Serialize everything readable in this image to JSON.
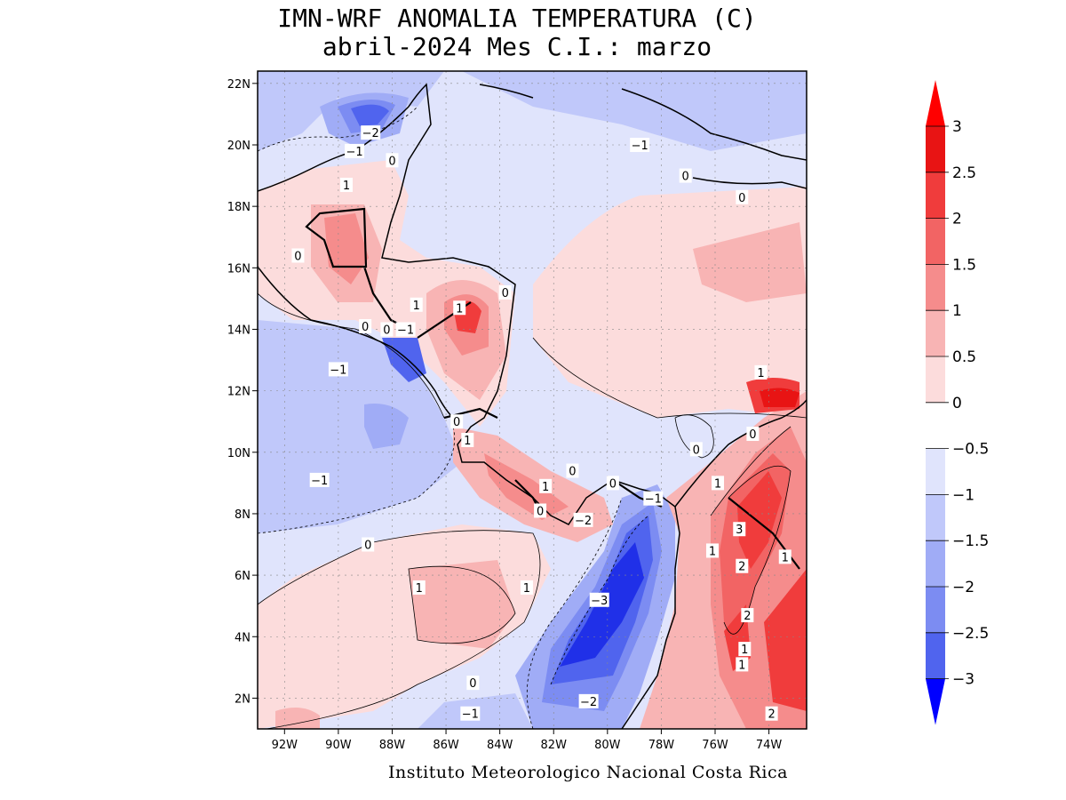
{
  "title": {
    "line1": "IMN-WRF  ANOMALIA TEMPERATURA (C)",
    "line2": "abril-2024 Mes C.I.: marzo"
  },
  "credit": "Instituto Meteorologico Nacional Costa Rica",
  "axes": {
    "x_ticks": [
      "92W",
      "90W",
      "88W",
      "86W",
      "84W",
      "82W",
      "80W",
      "78W",
      "76W",
      "74W"
    ],
    "y_ticks": [
      "22N",
      "20N",
      "18N",
      "16N",
      "14N",
      "12N",
      "10N",
      "8N",
      "6N",
      "4N",
      "2N"
    ]
  },
  "colorbar": {
    "labels": [
      "3",
      "2.5",
      "2",
      "1.5",
      "1",
      "0.5",
      "0",
      "−0.5",
      "−1",
      "−1.5",
      "−2",
      "−2.5",
      "−3"
    ],
    "colors": [
      "#e81414",
      "#f03c3c",
      "#f26464",
      "#f58c8c",
      "#f8b4b4",
      "#fcdcdc",
      "#ffffff",
      "#e0e4fc",
      "#c0c8fa",
      "#a0acf6",
      "#7c8cf2",
      "#5064ee",
      "#2030e8"
    ],
    "over_color": "#ff0000",
    "under_color": "#0000ff"
  },
  "contour_labels": [
    {
      "text": "−2",
      "lon": -88.8,
      "lat": 20.4
    },
    {
      "text": "−1",
      "lon": -89.4,
      "lat": 19.8
    },
    {
      "text": "0",
      "lon": -88.0,
      "lat": 19.5
    },
    {
      "text": "1",
      "lon": -89.7,
      "lat": 18.7
    },
    {
      "text": "0",
      "lon": -91.5,
      "lat": 16.4
    },
    {
      "text": "1",
      "lon": -87.1,
      "lat": 14.8
    },
    {
      "text": "1",
      "lon": -85.5,
      "lat": 14.7
    },
    {
      "text": "0",
      "lon": -89.0,
      "lat": 14.1
    },
    {
      "text": "0",
      "lon": -88.2,
      "lat": 14.0
    },
    {
      "text": "−1",
      "lon": -87.5,
      "lat": 14.0
    },
    {
      "text": "0",
      "lon": -83.8,
      "lat": 15.2
    },
    {
      "text": "−1",
      "lon": -90.0,
      "lat": 12.7
    },
    {
      "text": "−1",
      "lon": -78.8,
      "lat": 20.0
    },
    {
      "text": "0",
      "lon": -77.1,
      "lat": 19.0
    },
    {
      "text": "0",
      "lon": -75.0,
      "lat": 18.3
    },
    {
      "text": "1",
      "lon": -74.3,
      "lat": 12.6
    },
    {
      "text": "0",
      "lon": -74.6,
      "lat": 10.6
    },
    {
      "text": "0",
      "lon": -76.7,
      "lat": 10.1
    },
    {
      "text": "1",
      "lon": -85.2,
      "lat": 10.4
    },
    {
      "text": "0",
      "lon": -85.6,
      "lat": 11.0
    },
    {
      "text": "0",
      "lon": -81.3,
      "lat": 9.4
    },
    {
      "text": "1",
      "lon": -82.3,
      "lat": 8.9
    },
    {
      "text": "0",
      "lon": -82.5,
      "lat": 8.1
    },
    {
      "text": "0",
      "lon": -79.8,
      "lat": 9.0
    },
    {
      "text": "−1",
      "lon": -78.3,
      "lat": 8.5
    },
    {
      "text": "−2",
      "lon": -80.9,
      "lat": 7.8
    },
    {
      "text": "1",
      "lon": -75.9,
      "lat": 9.0
    },
    {
      "text": "3",
      "lon": -75.1,
      "lat": 7.5
    },
    {
      "text": "1",
      "lon": -76.1,
      "lat": 6.8
    },
    {
      "text": "2",
      "lon": -75.0,
      "lat": 6.3
    },
    {
      "text": "1",
      "lon": -73.4,
      "lat": 6.6
    },
    {
      "text": "−3",
      "lon": -80.3,
      "lat": 5.2
    },
    {
      "text": "2",
      "lon": -74.8,
      "lat": 4.7
    },
    {
      "text": "1",
      "lon": -74.9,
      "lat": 3.6
    },
    {
      "text": "1",
      "lon": -75.0,
      "lat": 3.1
    },
    {
      "text": "−2",
      "lon": -80.7,
      "lat": 1.9
    },
    {
      "text": "0",
      "lon": -85.0,
      "lat": 2.5
    },
    {
      "text": "−1",
      "lon": -85.1,
      "lat": 1.5
    },
    {
      "text": "2",
      "lon": -73.9,
      "lat": 1.5
    },
    {
      "text": "−1",
      "lon": -90.7,
      "lat": 9.1
    },
    {
      "text": "0",
      "lon": -88.9,
      "lat": 7.0
    },
    {
      "text": "1",
      "lon": -87.0,
      "lat": 5.6
    },
    {
      "text": "1",
      "lon": -83.0,
      "lat": 5.6
    }
  ]
}
